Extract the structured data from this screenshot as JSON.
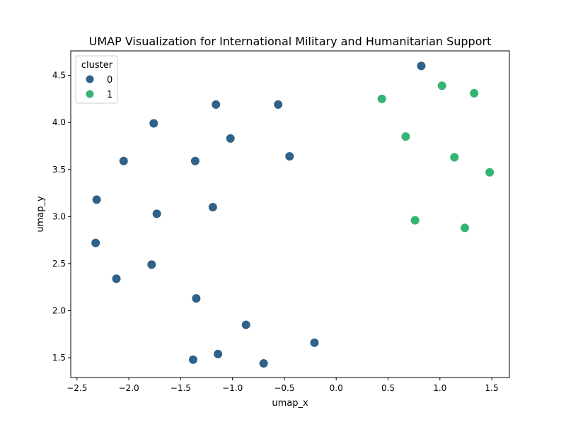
{
  "chart_data": {
    "type": "scatter",
    "title": "UMAP Visualization for International Military and Humanitarian Support",
    "xlabel": "umap_x",
    "ylabel": "umap_y",
    "xlim": [
      -2.56,
      1.67
    ],
    "ylim": [
      1.29,
      4.76
    ],
    "xticks": [
      -2.5,
      -2.0,
      -1.5,
      -1.0,
      -0.5,
      0.0,
      0.5,
      1.0,
      1.5
    ],
    "xtick_labels": [
      "−2.5",
      "−2.0",
      "−1.5",
      "−1.0",
      "−0.5",
      "0.0",
      "0.5",
      "1.0",
      "1.5"
    ],
    "yticks": [
      1.5,
      2.0,
      2.5,
      3.0,
      3.5,
      4.0,
      4.5
    ],
    "ytick_labels": [
      "1.5",
      "2.0",
      "2.5",
      "3.0",
      "3.5",
      "4.0",
      "4.5"
    ],
    "grid": false,
    "legend": {
      "title": "cluster",
      "placement": "upper-left"
    },
    "series": [
      {
        "name": "0",
        "color": "#2f6189",
        "points": [
          {
            "x": 0.82,
            "y": 4.6
          },
          {
            "x": -1.16,
            "y": 4.19
          },
          {
            "x": -0.56,
            "y": 4.19
          },
          {
            "x": -1.76,
            "y": 3.99
          },
          {
            "x": -1.02,
            "y": 3.83
          },
          {
            "x": -0.45,
            "y": 3.64
          },
          {
            "x": -2.05,
            "y": 3.59
          },
          {
            "x": -1.36,
            "y": 3.59
          },
          {
            "x": -2.31,
            "y": 3.18
          },
          {
            "x": -1.19,
            "y": 3.1
          },
          {
            "x": -1.73,
            "y": 3.03
          },
          {
            "x": -2.32,
            "y": 2.72
          },
          {
            "x": -1.78,
            "y": 2.49
          },
          {
            "x": -2.12,
            "y": 2.34
          },
          {
            "x": -1.35,
            "y": 2.13
          },
          {
            "x": -0.87,
            "y": 1.85
          },
          {
            "x": -0.21,
            "y": 1.66
          },
          {
            "x": -1.14,
            "y": 1.54
          },
          {
            "x": -1.38,
            "y": 1.48
          },
          {
            "x": -0.7,
            "y": 1.44
          }
        ]
      },
      {
        "name": "1",
        "color": "#33b472",
        "points": [
          {
            "x": 1.02,
            "y": 4.39
          },
          {
            "x": 1.33,
            "y": 4.31
          },
          {
            "x": 0.44,
            "y": 4.25
          },
          {
            "x": 0.67,
            "y": 3.85
          },
          {
            "x": 1.14,
            "y": 3.63
          },
          {
            "x": 1.48,
            "y": 3.47
          },
          {
            "x": 0.76,
            "y": 2.96
          },
          {
            "x": 1.24,
            "y": 2.88
          }
        ]
      }
    ]
  }
}
